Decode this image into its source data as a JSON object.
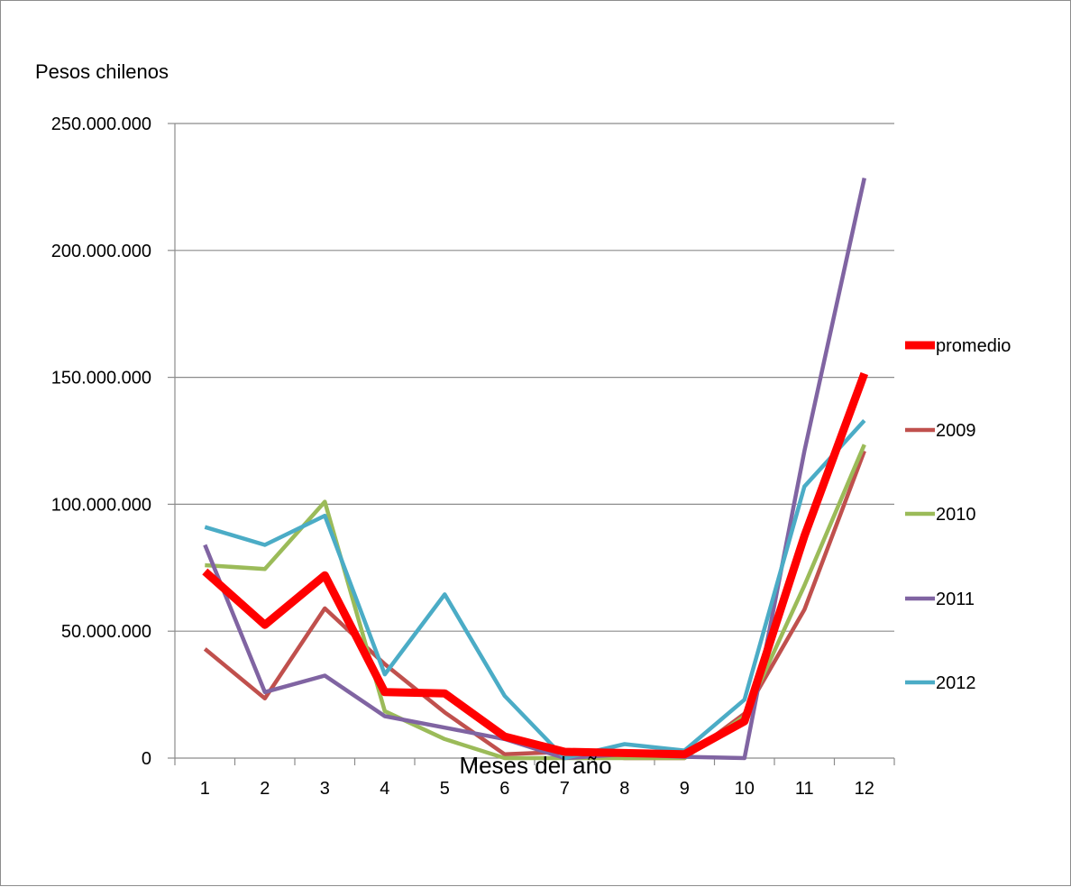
{
  "chart_data": {
    "type": "line",
    "title": "",
    "ylabel": "Pesos chilenos",
    "xlabel": "Meses del año",
    "x": [
      1,
      2,
      3,
      4,
      5,
      6,
      7,
      8,
      9,
      10,
      11,
      12
    ],
    "ylim": [
      0,
      250000000
    ],
    "yticks": [
      0,
      50000000,
      100000000,
      150000000,
      200000000,
      250000000
    ],
    "ytick_labels": [
      "0",
      "50.000.000",
      "100.000.000",
      "150.000.000",
      "200.000.000",
      "250.000.000"
    ],
    "xtick_labels": [
      "1",
      "2",
      "3",
      "4",
      "5",
      "6",
      "7",
      "8",
      "9",
      "10",
      "11",
      "12"
    ],
    "grid": "horizontal",
    "legend_position": "right",
    "series": [
      {
        "name": "promedio",
        "color": "#ff0000",
        "values": [
          73500000,
          52500000,
          72000000,
          26000000,
          25500000,
          8500000,
          2500000,
          2000000,
          1500000,
          14500000,
          87500000,
          151500000
        ]
      },
      {
        "name": "2009",
        "color": "#c0504d",
        "values": [
          43000000,
          23500000,
          59000000,
          37000000,
          18000000,
          1500000,
          2500000,
          0,
          0,
          17500000,
          58500000,
          121000000
        ]
      },
      {
        "name": "2010",
        "color": "#9bbb59",
        "values": [
          76000000,
          74500000,
          101000000,
          18500000,
          7500000,
          0,
          0,
          0,
          0,
          16500000,
          68000000,
          123500000
        ]
      },
      {
        "name": "2011",
        "color": "#8064a2",
        "values": [
          84000000,
          26000000,
          32500000,
          16500000,
          12000000,
          7500000,
          0,
          1500000,
          500000,
          0,
          121000000,
          228500000
        ]
      },
      {
        "name": "2012",
        "color": "#4bacc6",
        "values": [
          91000000,
          84000000,
          95500000,
          33000000,
          64500000,
          24500000,
          0,
          5500000,
          3000000,
          23000000,
          107000000,
          133000000
        ]
      }
    ]
  }
}
